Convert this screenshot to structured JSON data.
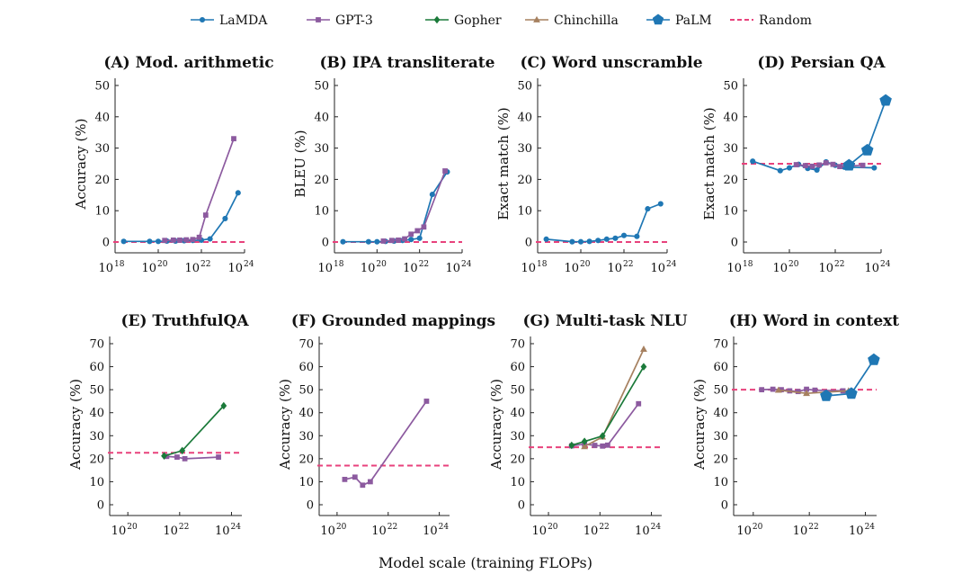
{
  "legend": [
    {
      "name": "LaMDA",
      "color": "#1f77b4",
      "marker": "circle"
    },
    {
      "name": "GPT-3",
      "color": "#8c5a9f",
      "marker": "square"
    },
    {
      "name": "Gopher",
      "color": "#1b7a3a",
      "marker": "diamond"
    },
    {
      "name": "Chinchilla",
      "color": "#a6805f",
      "marker": "triangle"
    },
    {
      "name": "PaLM",
      "color": "#1f77b4",
      "marker": "pentagon"
    },
    {
      "name": "Random",
      "color": "#e8427c",
      "marker": "dashed-line"
    }
  ],
  "xlabel": "Model scale (training FLOPs)",
  "chart_data": [
    {
      "type": "line",
      "title": "(A) Mod. arithmetic",
      "ylabel": "Accuracy (%)",
      "xscale": "log",
      "xlim": [
        18,
        24
      ],
      "ylim": [
        0,
        50
      ],
      "xticks": [
        18,
        20,
        22,
        24
      ],
      "yticks": [
        0,
        10,
        20,
        30,
        40,
        50
      ],
      "random": 0,
      "series": [
        {
          "name": "LaMDA",
          "x": [
            18.4,
            19.6,
            20.0,
            20.4,
            20.8,
            21.2,
            21.6,
            22.0,
            22.4,
            23.1,
            23.7
          ],
          "y": [
            0.2,
            0.2,
            0.2,
            0.3,
            0.3,
            0.4,
            0.5,
            0.6,
            1.0,
            7.5,
            15.7
          ]
        },
        {
          "name": "GPT-3",
          "x": [
            20.3,
            20.7,
            21.0,
            21.3,
            21.6,
            21.9,
            22.2,
            23.5
          ],
          "y": [
            0.5,
            0.6,
            0.6,
            0.7,
            0.8,
            1.5,
            8.6,
            33.0
          ]
        }
      ]
    },
    {
      "type": "line",
      "title": "(B) IPA transliterate",
      "ylabel": "BLEU (%)",
      "xscale": "log",
      "xlim": [
        18,
        24
      ],
      "ylim": [
        0,
        50
      ],
      "xticks": [
        18,
        20,
        22,
        24
      ],
      "yticks": [
        0,
        10,
        20,
        30,
        40,
        50
      ],
      "random": 0,
      "series": [
        {
          "name": "LaMDA",
          "x": [
            18.4,
            19.6,
            20.0,
            20.4,
            20.8,
            21.2,
            21.6,
            22.0,
            22.6,
            23.3
          ],
          "y": [
            0.1,
            0.1,
            0.1,
            0.2,
            0.3,
            0.5,
            0.8,
            1.2,
            15.2,
            22.4
          ]
        },
        {
          "name": "GPT-3",
          "x": [
            20.3,
            20.7,
            21.0,
            21.3,
            21.6,
            21.9,
            22.2,
            23.2
          ],
          "y": [
            0.3,
            0.5,
            0.6,
            1.0,
            2.5,
            3.6,
            4.8,
            22.7
          ]
        }
      ]
    },
    {
      "type": "line",
      "title": "(C) Word unscramble",
      "ylabel": "Exact match (%)",
      "xscale": "log",
      "xlim": [
        18,
        24
      ],
      "ylim": [
        0,
        50
      ],
      "xticks": [
        18,
        20,
        22,
        24
      ],
      "yticks": [
        0,
        10,
        20,
        30,
        40,
        50
      ],
      "random": 0,
      "series": [
        {
          "name": "LaMDA",
          "x": [
            18.4,
            19.6,
            20.0,
            20.4,
            20.8,
            21.2,
            21.6,
            22.0,
            22.6,
            23.1,
            23.7
          ],
          "y": [
            0.9,
            0.1,
            0.1,
            0.2,
            0.5,
            0.9,
            1.2,
            2.1,
            1.8,
            10.6,
            12.2
          ]
        }
      ]
    },
    {
      "type": "line",
      "title": "(D) Persian QA",
      "ylabel": "Exact match (%)",
      "xscale": "log",
      "xlim": [
        18,
        24
      ],
      "ylim": [
        0,
        50
      ],
      "xticks": [
        18,
        20,
        22,
        24
      ],
      "yticks": [
        0,
        10,
        20,
        30,
        40,
        50
      ],
      "random": 25,
      "series": [
        {
          "name": "LaMDA",
          "x": [
            18.4,
            19.6,
            20.0,
            20.4,
            20.8,
            21.2,
            21.6,
            22.0,
            22.4,
            23.7
          ],
          "y": [
            25.8,
            22.8,
            23.7,
            24.8,
            23.5,
            23.0,
            25.6,
            24.5,
            23.9,
            23.7
          ]
        },
        {
          "name": "GPT-3",
          "x": [
            20.3,
            20.7,
            21.0,
            21.3,
            21.6,
            21.9,
            22.2,
            23.2
          ],
          "y": [
            24.7,
            24.4,
            24.2,
            24.6,
            25.3,
            24.8,
            24.1,
            24.5
          ]
        },
        {
          "name": "PaLM",
          "x": [
            22.6,
            23.4,
            24.2
          ],
          "y": [
            24.5,
            29.3,
            45.2
          ]
        }
      ]
    },
    {
      "type": "line",
      "title": "(E) TruthfulQA",
      "ylabel": "Accuracy (%)",
      "xscale": "log",
      "xlim": [
        19.3,
        24.4
      ],
      "ylim": [
        0,
        70
      ],
      "xticks": [
        20,
        22,
        24
      ],
      "yticks": [
        0,
        10,
        20,
        30,
        40,
        50,
        60,
        70
      ],
      "random": 22.6,
      "series": [
        {
          "name": "GPT-3",
          "x": [
            21.5,
            21.9,
            22.2,
            23.5
          ],
          "y": [
            21.0,
            20.7,
            20.0,
            20.7
          ]
        },
        {
          "name": "Gopher",
          "x": [
            21.4,
            22.1,
            23.7
          ],
          "y": [
            21.2,
            23.5,
            43.0
          ]
        }
      ]
    },
    {
      "type": "line",
      "title": "(F) Grounded mappings",
      "ylabel": "Accuracy (%)",
      "xscale": "log",
      "xlim": [
        19.3,
        24.4
      ],
      "ylim": [
        0,
        70
      ],
      "xticks": [
        20,
        22,
        24
      ],
      "yticks": [
        0,
        10,
        20,
        30,
        40,
        50,
        60,
        70
      ],
      "random": 17,
      "series": [
        {
          "name": "GPT-3",
          "x": [
            20.3,
            20.7,
            21.0,
            21.3,
            23.5
          ],
          "y": [
            11.0,
            12.0,
            8.5,
            10.0,
            45.0
          ]
        }
      ]
    },
    {
      "type": "line",
      "title": "(G) Multi-task NLU",
      "ylabel": "Accuracy (%)",
      "xscale": "log",
      "xlim": [
        19.3,
        24.4
      ],
      "ylim": [
        0,
        70
      ],
      "xticks": [
        20,
        22,
        24
      ],
      "yticks": [
        0,
        10,
        20,
        30,
        40,
        50,
        60,
        70
      ],
      "random": 25,
      "series": [
        {
          "name": "GPT-3",
          "x": [
            20.9,
            21.4,
            21.8,
            22.1,
            22.3,
            23.5
          ],
          "y": [
            25.6,
            26.3,
            25.8,
            25.5,
            25.9,
            43.9
          ]
        },
        {
          "name": "Chinchilla",
          "x": [
            21.4,
            22.1,
            23.7
          ],
          "y": [
            25.3,
            29.5,
            67.6
          ]
        },
        {
          "name": "Gopher",
          "x": [
            20.9,
            21.4,
            22.1,
            23.7
          ],
          "y": [
            25.8,
            27.5,
            29.9,
            60.0
          ]
        }
      ]
    },
    {
      "type": "line",
      "title": "(H) Word in context",
      "ylabel": "Accuracy (%)",
      "xscale": "log",
      "xlim": [
        19.3,
        24.4
      ],
      "ylim": [
        0,
        70
      ],
      "xticks": [
        20,
        22,
        24
      ],
      "yticks": [
        0,
        10,
        20,
        30,
        40,
        50,
        60,
        70
      ],
      "random": 50,
      "series": [
        {
          "name": "GPT-3",
          "x": [
            20.3,
            20.7,
            21.0,
            21.3,
            21.6,
            21.9,
            22.2,
            23.2
          ],
          "y": [
            50.0,
            50.2,
            50.0,
            49.5,
            49.2,
            50.2,
            49.8,
            49.5
          ]
        },
        {
          "name": "Chinchilla",
          "x": [
            20.9,
            21.9,
            23.4
          ],
          "y": [
            49.8,
            48.4,
            49.5
          ]
        },
        {
          "name": "PaLM",
          "x": [
            22.6,
            23.5,
            24.3
          ],
          "y": [
            47.3,
            48.3,
            63.0
          ]
        }
      ]
    }
  ]
}
